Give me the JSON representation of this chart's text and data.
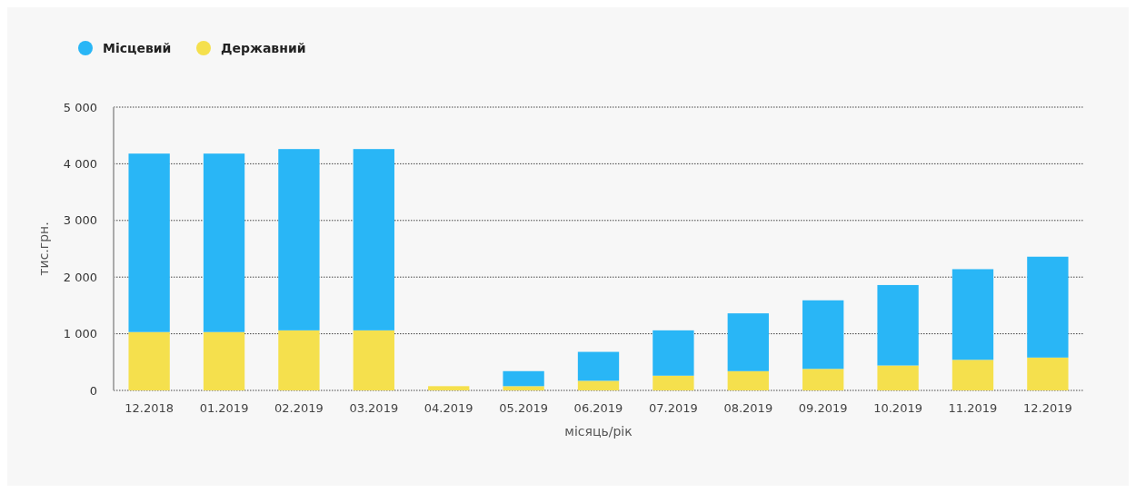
{
  "chart_data": {
    "type": "bar",
    "stacked": true,
    "xlabel": "місяць/рік",
    "ylabel": "тис.грн.",
    "categories": [
      "12.2018",
      "01.2019",
      "02.2019",
      "03.2019",
      "04.2019",
      "05.2019",
      "06.2019",
      "07.2019",
      "08.2019",
      "09.2019",
      "10.2019",
      "11.2019",
      "12.2019"
    ],
    "series": [
      {
        "name": "Державний",
        "color": "#f5e04d",
        "values": [
          1030,
          1030,
          1060,
          1060,
          75,
          75,
          170,
          260,
          340,
          380,
          440,
          540,
          580
        ]
      },
      {
        "name": "Місцевий",
        "color": "#29b6f6",
        "values": [
          3150,
          3150,
          3200,
          3200,
          0,
          265,
          510,
          800,
          1020,
          1210,
          1420,
          1600,
          1780
        ]
      }
    ],
    "ylim": [
      0,
      5000
    ],
    "yticks": [
      {
        "value": 0,
        "label": "0"
      },
      {
        "value": 1000,
        "label": "1 000"
      },
      {
        "value": 2000,
        "label": "2 000"
      },
      {
        "value": 3000,
        "label": "3 000"
      },
      {
        "value": 4000,
        "label": "4 000"
      },
      {
        "value": 5000,
        "label": "5 000"
      }
    ],
    "grid": "y",
    "legend": "top left"
  }
}
